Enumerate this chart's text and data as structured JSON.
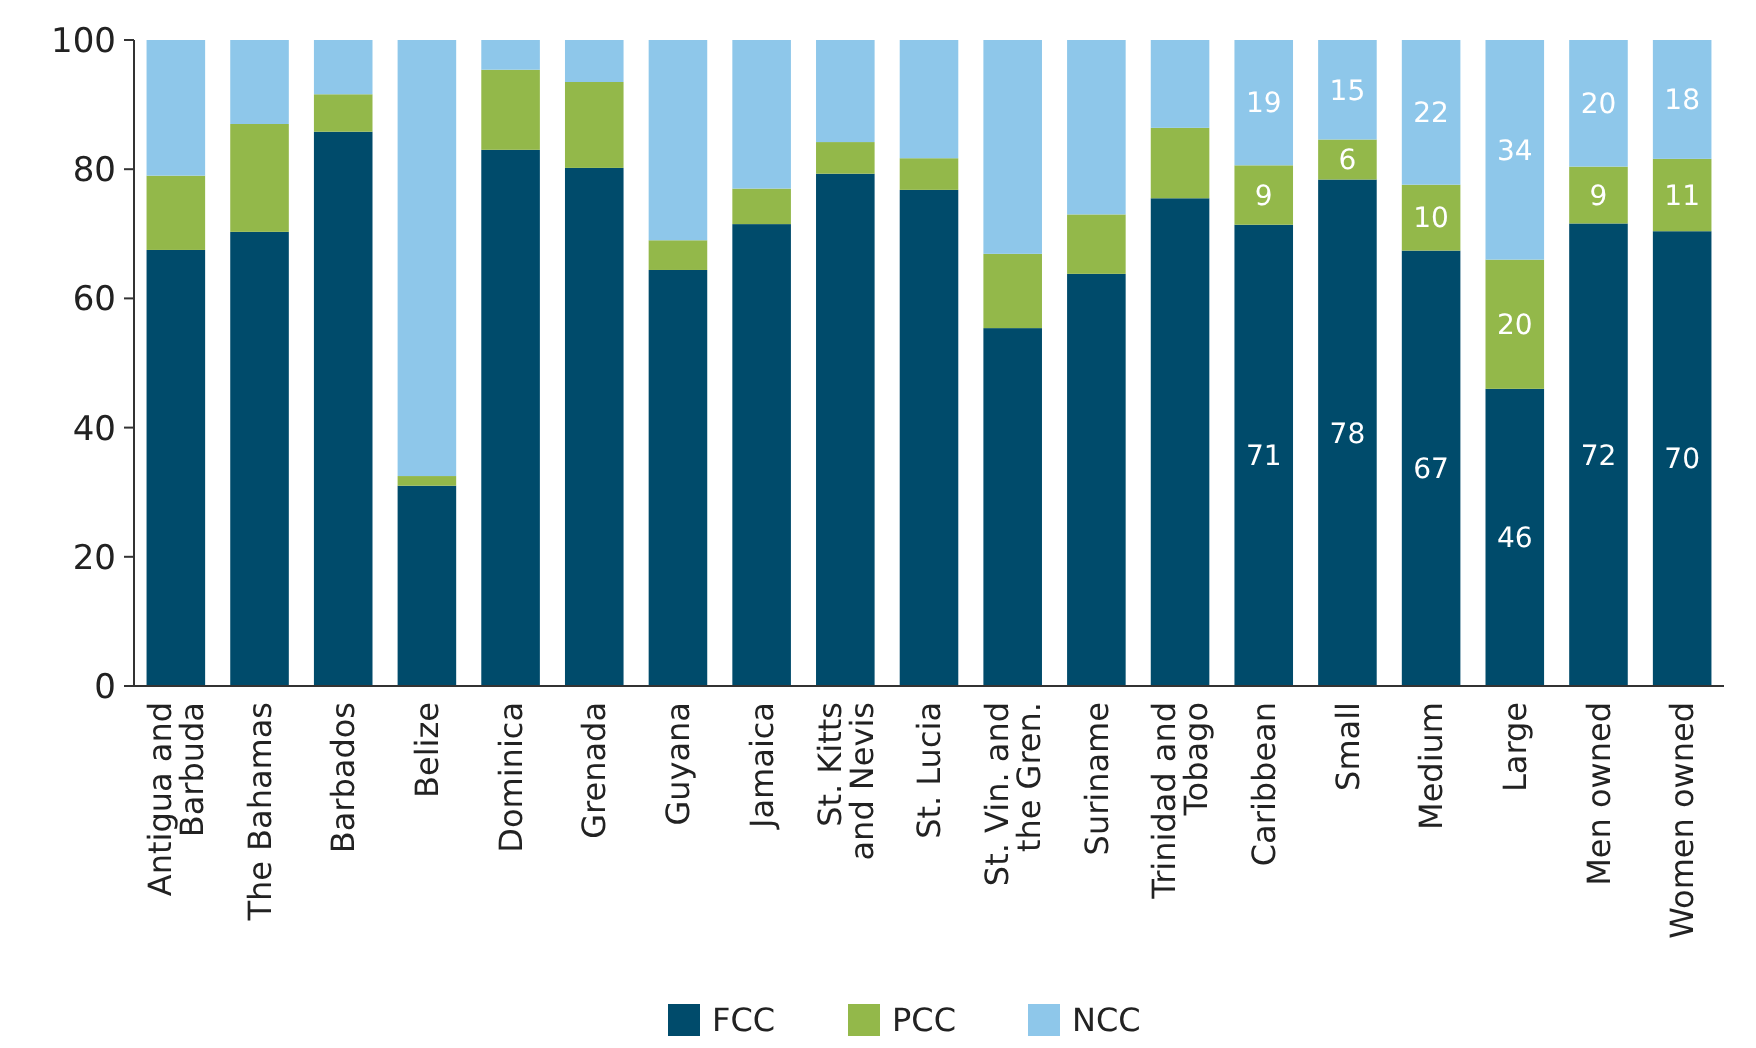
{
  "chart_data": {
    "type": "bar",
    "stacked": true,
    "categories": [
      "Antigua and Barbuda",
      "The Bahamas",
      "Barbados",
      "Belize",
      "Dominica",
      "Grenada",
      "Guyana",
      "Jamaica",
      "St. Kitts and Nevis",
      "St. Lucia",
      "St. Vin. and the Gren.",
      "Suriname",
      "Trinidad and Tobago",
      "Caribbean",
      "Small",
      "Medium",
      "Large",
      "Men owned",
      "Women owned"
    ],
    "series": [
      {
        "name": "FCC",
        "color": "#004b6b",
        "values": [
          67.5,
          70.3,
          85.8,
          31,
          83,
          80.2,
          64.4,
          71.5,
          79.3,
          76.8,
          55.4,
          63.8,
          75.5,
          71.4,
          78.4,
          67.4,
          46,
          71.6,
          70.4
        ],
        "value_labels": [
          null,
          null,
          null,
          null,
          null,
          null,
          null,
          null,
          null,
          null,
          null,
          null,
          null,
          "71",
          "78",
          "67",
          "46",
          "72",
          "70"
        ]
      },
      {
        "name": "PCC",
        "color": "#93b84a",
        "values": [
          11.5,
          16.7,
          5.8,
          1.5,
          12.4,
          13.3,
          4.6,
          5.5,
          4.9,
          4.9,
          11.5,
          9.2,
          10.9,
          9.2,
          6.2,
          10.2,
          20,
          8.8,
          11.2
        ],
        "value_labels": [
          null,
          null,
          null,
          null,
          null,
          null,
          null,
          null,
          null,
          null,
          null,
          null,
          null,
          "9",
          "6",
          "10",
          "20",
          "9",
          "11"
        ]
      },
      {
        "name": "NCC",
        "color": "#8ec7ea",
        "values": [
          21,
          13,
          8.4,
          67.5,
          4.6,
          6.5,
          31,
          23,
          15.8,
          18.3,
          33.1,
          27,
          13.6,
          19.4,
          15.4,
          22.4,
          34,
          19.6,
          18.4
        ],
        "value_labels": [
          null,
          null,
          null,
          null,
          null,
          null,
          null,
          null,
          null,
          null,
          null,
          null,
          null,
          "19",
          "15",
          "22",
          "34",
          "20",
          "18"
        ]
      }
    ],
    "ylim": [
      0,
      100
    ],
    "yticks": [
      0,
      20,
      40,
      60,
      80,
      100
    ],
    "grid": false,
    "legend": "bottom"
  }
}
